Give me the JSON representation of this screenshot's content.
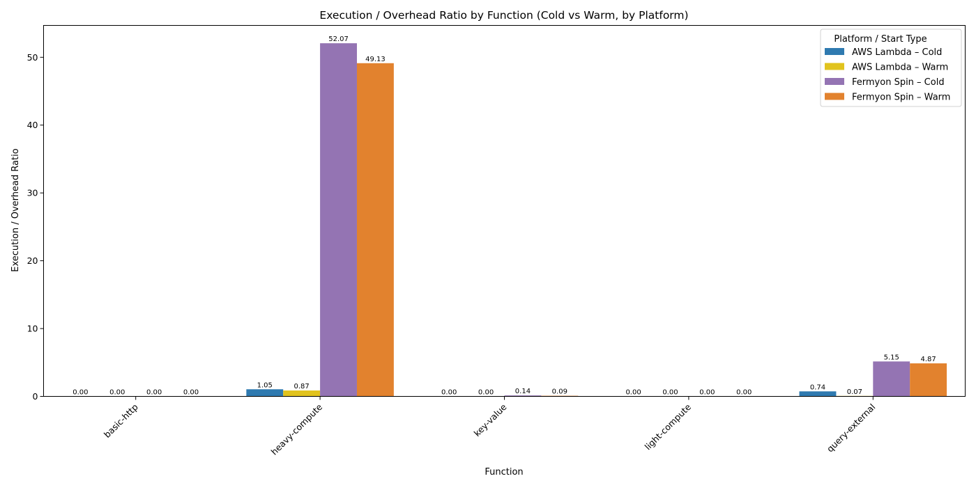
{
  "chart_data": {
    "type": "bar",
    "title": "Execution / Overhead Ratio by Function (Cold vs Warm, by Platform)",
    "xlabel": "Function",
    "ylabel": "Execution / Overhead Ratio",
    "categories": [
      "basic-http",
      "heavy-compute",
      "key-value",
      "light-compute",
      "query-external"
    ],
    "ylim": [
      0,
      54.7
    ],
    "yticks": [
      0,
      10,
      20,
      30,
      40,
      50
    ],
    "grid": false,
    "legend": {
      "title": "Platform / Start Type",
      "placement": "top-right"
    },
    "series": [
      {
        "name": "AWS Lambda – Cold",
        "color": "#2f7ab0",
        "values": [
          0.0,
          1.05,
          0.0,
          0.0,
          0.74
        ],
        "labels": [
          "0.00",
          "1.05",
          "0.00",
          "0.00",
          "0.74"
        ]
      },
      {
        "name": "AWS Lambda – Warm",
        "color": "#e1c31e",
        "values": [
          0.0,
          0.87,
          0.0,
          0.0,
          0.07
        ],
        "labels": [
          "0.00",
          "0.87",
          "0.00",
          "0.00",
          "0.07"
        ]
      },
      {
        "name": "Fermyon Spin – Cold",
        "color": "#9474b3",
        "values": [
          0.0,
          52.07,
          0.14,
          0.0,
          5.15
        ],
        "labels": [
          "0.00",
          "52.07",
          "0.14",
          "0.00",
          "5.15"
        ]
      },
      {
        "name": "Fermyon Spin – Warm",
        "color": "#e2822e",
        "values": [
          0.0,
          49.13,
          0.09,
          0.0,
          4.87
        ],
        "labels": [
          "0.00",
          "49.13",
          "0.09",
          "0.00",
          "4.87"
        ]
      }
    ]
  }
}
